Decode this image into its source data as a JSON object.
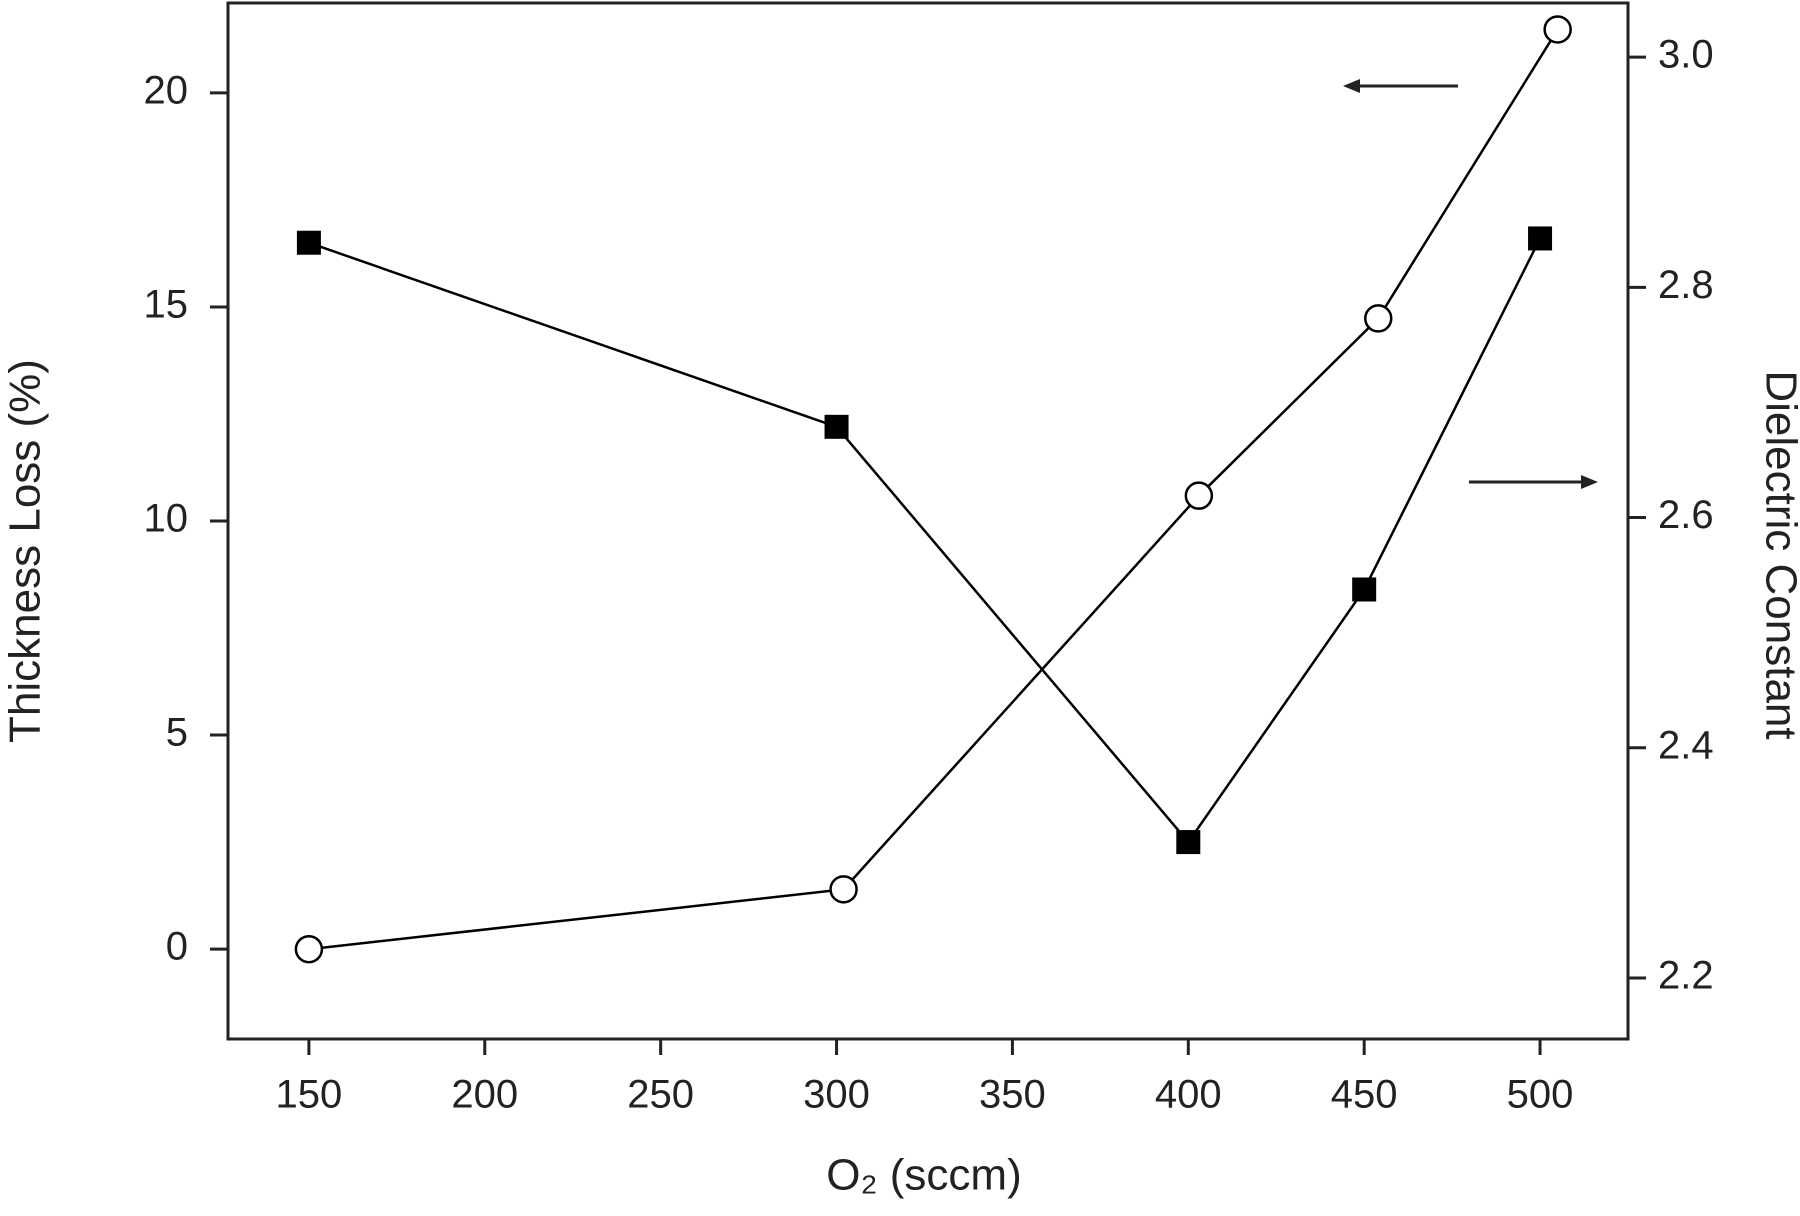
{
  "chart_data": {
    "type": "line",
    "x_label": "O₂ (sccm)",
    "y_label": "Thickness Loss (%)",
    "y2_label": "Dielectric Constant",
    "xlim": [
      127,
      525
    ],
    "xticks": [
      150,
      200,
      250,
      300,
      350,
      400,
      450,
      500
    ],
    "ylim": [
      -2.1,
      22.1
    ],
    "yticks": [
      0,
      5,
      10,
      15,
      20
    ],
    "y2lim": [
      2.147,
      3.047
    ],
    "y2ticks": [
      {
        "value": 2.2,
        "label": "2.2"
      },
      {
        "value": 2.4,
        "label": "2.4"
      },
      {
        "value": 2.6,
        "label": "2.6"
      },
      {
        "value": 2.8,
        "label": "2.8"
      },
      {
        "value": 3,
        "label": "3.0"
      }
    ],
    "series": [
      {
        "name": "Thickness Loss",
        "color": "#000000",
        "marker": "square",
        "axis": "y",
        "x": [
          150,
          300,
          400,
          450,
          500
        ],
        "values": [
          16.5,
          12.2,
          2.5,
          8.4,
          16.6
        ]
      },
      {
        "name": "Dielectric Constant",
        "color": "#000000",
        "marker": "circle",
        "axis": "y2",
        "x": [
          150,
          302,
          403,
          454,
          505
        ],
        "values": [
          2.225,
          2.277,
          2.619,
          2.773,
          3.024
        ]
      }
    ]
  }
}
